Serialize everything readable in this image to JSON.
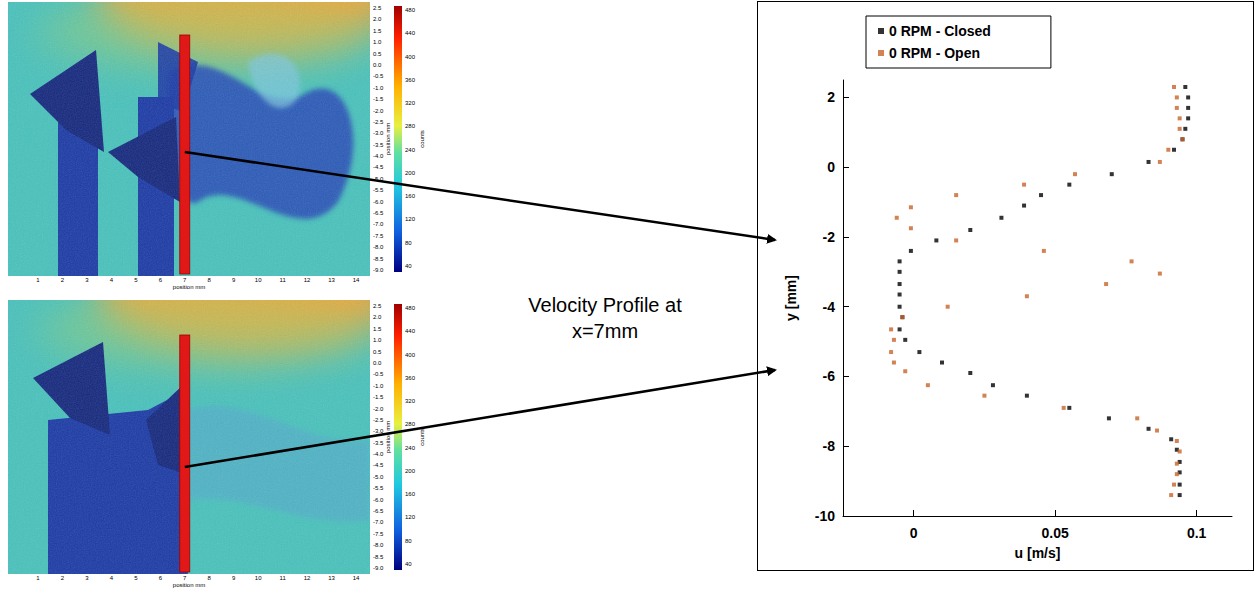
{
  "annotation": "Velocity Profile at x=7mm",
  "images": [
    {
      "x_label": "position mm",
      "xticks": [
        1,
        2,
        3,
        4,
        5,
        6,
        7,
        8,
        9,
        10,
        11,
        12,
        13,
        14
      ],
      "y_label": "position mm",
      "yticks": [
        2.5,
        {
          "value": 2,
          "label": "2.0"
        },
        1.5,
        {
          "value": 1,
          "label": "1.0"
        },
        0.5,
        {
          "value": 0,
          "label": "0.0"
        },
        -0.5,
        {
          "value": -1,
          "label": "-1.0"
        },
        -1.5,
        {
          "value": -2,
          "label": "-2.0"
        },
        -2.5,
        {
          "value": -3,
          "label": "-3.0"
        },
        -3.5,
        {
          "value": -4,
          "label": "-4.0"
        },
        -4.5,
        {
          "value": -5,
          "label": "-5.0"
        },
        -5.5,
        {
          "value": -6,
          "label": "-6.0"
        },
        -6.5,
        {
          "value": -7,
          "label": "-7.0"
        },
        -7.5,
        {
          "value": -8,
          "label": "-8.0"
        },
        -8.5,
        {
          "value": -9,
          "label": "-9.0"
        }
      ],
      "colorbar_label": "counts",
      "colorbar_ticks": [
        480,
        440,
        400,
        360,
        320,
        280,
        240,
        200,
        160,
        120,
        80,
        40
      ],
      "profile_x": 7
    },
    {
      "x_label": "position mm",
      "xticks": [
        1,
        2,
        3,
        4,
        5,
        6,
        7,
        8,
        9,
        10,
        11,
        12,
        13,
        14
      ],
      "y_label": "position mm",
      "yticks": [
        2.5,
        {
          "value": 2,
          "label": "2.0"
        },
        1.5,
        {
          "value": 1,
          "label": "1.0"
        },
        0.5,
        {
          "value": 0,
          "label": "0.0"
        },
        -0.5,
        {
          "value": -1,
          "label": "-1.0"
        },
        -1.5,
        {
          "value": -2,
          "label": "-2.0"
        },
        -2.5,
        {
          "value": -3,
          "label": "-3.0"
        },
        -3.5,
        {
          "value": -4,
          "label": "-4.0"
        },
        -4.5,
        {
          "value": -5,
          "label": "-5.0"
        },
        -5.5,
        {
          "value": -6,
          "label": "-6.0"
        },
        -6.5,
        {
          "value": -7,
          "label": "-7.0"
        },
        -7.5,
        {
          "value": -8,
          "label": "-8.0"
        },
        -8.5,
        {
          "value": -9,
          "label": "-9.0"
        }
      ],
      "colorbar_label": "counts",
      "colorbar_ticks": [
        480,
        440,
        400,
        360,
        320,
        280,
        240,
        200,
        160,
        120,
        80,
        40
      ],
      "profile_x": 7
    }
  ],
  "chart_data": {
    "type": "scatter",
    "x_label": "u [m/s]",
    "y_label": "y [mm]",
    "xlim": [
      -0.025,
      0.1125
    ],
    "xticks": [
      0,
      0.05,
      0.1
    ],
    "ylim": [
      -10,
      2.5
    ],
    "yticks": [
      -10,
      -8,
      -6,
      -4,
      -2,
      0,
      2
    ],
    "grid": false,
    "legend": "top-left",
    "marker": "square",
    "series": [
      {
        "name": "0 RPM - Closed",
        "color": "#000000",
        "x": [
          0.096,
          0.097,
          0.097,
          0.097,
          0.096,
          0.095,
          0.092,
          0.083,
          0.07,
          0.055,
          0.045,
          0.039,
          0.031,
          0.02,
          0.008,
          -0.001,
          -0.005,
          -0.005,
          -0.005,
          -0.005,
          -0.005,
          -0.004,
          -0.005,
          -0.003,
          0.002,
          0.01,
          0.02,
          0.028,
          0.04,
          0.055,
          0.069,
          0.083,
          0.091,
          0.093,
          0.094,
          0.094,
          0.094,
          0.094
        ],
        "y": [
          2.3,
          2.0,
          1.7,
          1.4,
          1.1,
          0.8,
          0.5,
          0.15,
          -0.2,
          -0.5,
          -0.8,
          -1.1,
          -1.45,
          -1.8,
          -2.1,
          -2.4,
          -2.7,
          -3.0,
          -3.35,
          -3.65,
          -4.0,
          -4.3,
          -4.65,
          -4.95,
          -5.3,
          -5.6,
          -5.9,
          -6.25,
          -6.55,
          -6.9,
          -7.2,
          -7.5,
          -7.8,
          -8.1,
          -8.45,
          -8.75,
          -9.1,
          -9.4
        ]
      },
      {
        "name": "0 RPM - Open",
        "color": "#c86428",
        "x": [
          0.092,
          0.093,
          0.093,
          0.094,
          0.094,
          0.095,
          0.09,
          0.087,
          0.057,
          0.039,
          0.015,
          -0.001,
          -0.006,
          -0.001,
          0.015,
          0.046,
          0.077,
          0.087,
          0.068,
          0.04,
          0.012,
          -0.004,
          -0.008,
          -0.007,
          -0.008,
          -0.007,
          -0.003,
          0.005,
          0.025,
          0.053,
          0.079,
          0.086,
          0.093,
          0.094,
          0.093,
          0.093,
          0.092,
          0.091
        ],
        "y": [
          2.3,
          2.0,
          1.7,
          1.4,
          1.1,
          0.8,
          0.5,
          0.15,
          -0.2,
          -0.5,
          -0.8,
          -1.15,
          -1.45,
          -1.75,
          -2.1,
          -2.4,
          -2.7,
          -3.05,
          -3.35,
          -3.7,
          -4.0,
          -4.3,
          -4.65,
          -4.95,
          -5.3,
          -5.6,
          -5.85,
          -6.25,
          -6.55,
          -6.9,
          -7.2,
          -7.55,
          -7.85,
          -8.15,
          -8.5,
          -8.8,
          -9.1,
          -9.4
        ]
      }
    ]
  }
}
